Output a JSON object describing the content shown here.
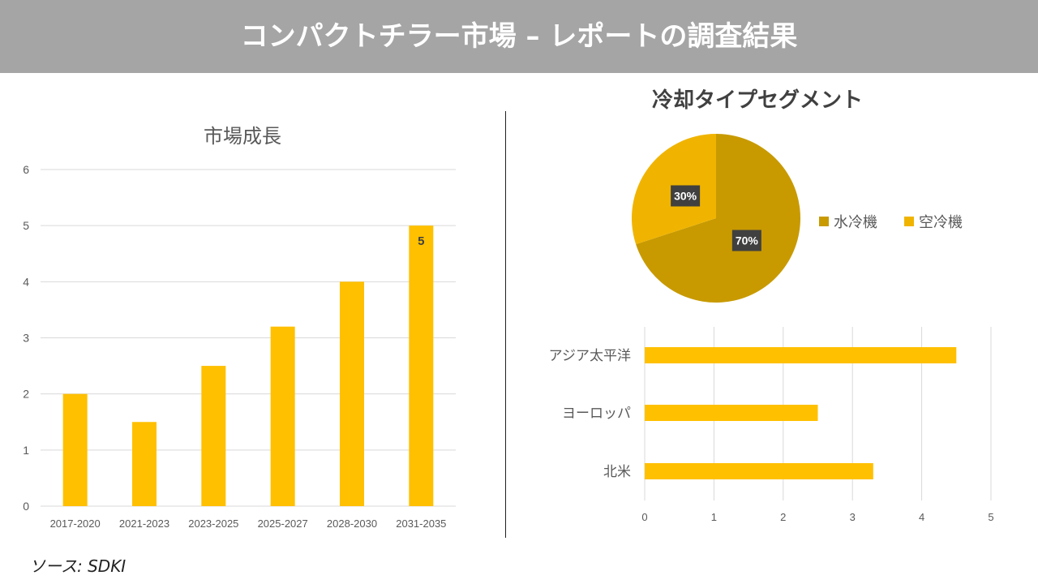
{
  "header": {
    "title": "コンパクトチラー市場 – レポートの調査結果"
  },
  "source": "ソース: SDKI",
  "colors": {
    "bar": "#ffc000",
    "pie_water": "#c89a00",
    "pie_air": "#f0b400",
    "grid": "#d9d9d9"
  },
  "chart_data": [
    {
      "type": "bar",
      "title": "市場成長",
      "categories": [
        "2017-2020",
        "2021-2023",
        "2023-2025",
        "2025-2027",
        "2028-2030",
        "2031-2035"
      ],
      "values": [
        2,
        1.5,
        2.5,
        3.2,
        4,
        5
      ],
      "ylim": [
        0,
        6
      ],
      "yticks": [
        0,
        1,
        2,
        3,
        4,
        5,
        6
      ],
      "data_labels": {
        "5": "5"
      },
      "grid": true
    },
    {
      "type": "pie",
      "title": "冷却タイプセグメント",
      "labels": [
        "水冷機",
        "空冷機"
      ],
      "values": [
        70,
        30
      ],
      "data_labels": [
        "70%",
        "30%"
      ],
      "legend": "right"
    },
    {
      "type": "bar",
      "orientation": "horizontal",
      "categories": [
        "アジア太平洋",
        "ヨーロッパ",
        "北米"
      ],
      "values": [
        4.5,
        2.5,
        3.3
      ],
      "xlim": [
        0,
        5
      ],
      "xticks": [
        0,
        1,
        2,
        3,
        4,
        5
      ],
      "grid": true
    }
  ]
}
